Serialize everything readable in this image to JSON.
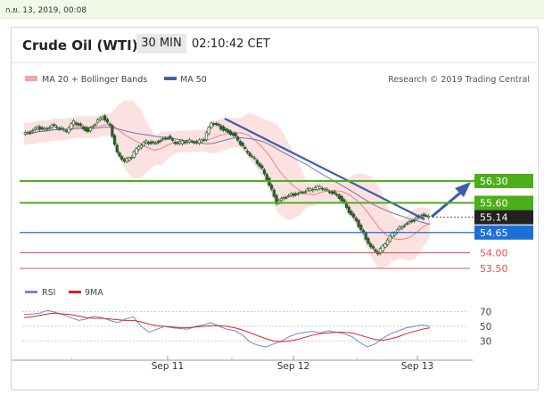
{
  "header": {
    "datetime": "ก.ย. 13, 2019, 00:08",
    "instrument": "Crude Oil (WTI)",
    "timeframe": "30 MIN",
    "time": "02:10:42 CET"
  },
  "legend": {
    "ma20": "MA 20 + Bollinger Bands",
    "ma50": "MA 50",
    "credit": "Research © 2019 Trading Central",
    "rsi": "RSI",
    "rsi_ma": "9MA"
  },
  "colors": {
    "band_fill": "#fcdcdc",
    "ma20": "#f08080",
    "ma50": "#4a5fa5",
    "trend": "#3a5ea8",
    "resistance": "#4caf1a",
    "support": "#1a6fd8",
    "support_red": "#e05050",
    "last": "#222222",
    "candle": "#2b5d2b",
    "rsi": "#6f88d6",
    "rsi_ma": "#dd2222"
  },
  "chart_data": [
    {
      "type": "candlestick",
      "x_ticks": [
        "Sep 11",
        "Sep 12",
        "Sep 13"
      ],
      "levels": [
        {
          "label": "56.30",
          "value": 56.3,
          "kind": "resistance"
        },
        {
          "label": "55.60",
          "value": 55.6,
          "kind": "resistance"
        },
        {
          "label": "55.14",
          "value": 55.14,
          "kind": "last"
        },
        {
          "label": "54.65",
          "value": 54.65,
          "kind": "support"
        },
        {
          "label": "54.00",
          "value": 54.0,
          "kind": "support-red"
        },
        {
          "label": "53.50",
          "value": 53.5,
          "kind": "support-red"
        }
      ],
      "price_series": [
        57.8,
        57.85,
        58.0,
        57.95,
        58.1,
        58.0,
        57.9,
        58.2,
        58.05,
        57.9,
        58.15,
        58.35,
        58.05,
        57.2,
        56.95,
        57.1,
        57.4,
        57.55,
        57.5,
        57.6,
        57.7,
        57.5,
        57.55,
        57.6,
        57.55,
        57.65,
        58.15,
        58.05,
        57.9,
        57.8,
        57.5,
        57.2,
        57.0,
        56.7,
        56.2,
        55.6,
        55.75,
        55.85,
        55.9,
        56.0,
        56.05,
        56.1,
        56.0,
        55.9,
        55.7,
        55.3,
        55.0,
        54.6,
        54.2,
        54.0,
        54.3,
        54.6,
        54.8,
        54.95,
        55.05,
        55.2,
        55.14
      ]
    },
    {
      "type": "line",
      "name": "RSI",
      "y_ticks": [
        70,
        50,
        30
      ],
      "ylim": [
        20,
        80
      ],
      "series": [
        {
          "name": "RSI",
          "values": [
            66,
            67,
            68,
            72,
            69,
            66,
            62,
            58,
            60,
            64,
            62,
            58,
            55,
            60,
            63,
            50,
            42,
            46,
            50,
            48,
            47,
            46,
            50,
            52,
            55,
            50,
            46,
            44,
            38,
            28,
            24,
            22,
            26,
            30,
            36,
            40,
            42,
            43,
            41,
            44,
            42,
            40,
            36,
            28,
            22,
            26,
            34,
            40,
            44,
            48,
            50,
            52,
            50
          ]
        },
        {
          "name": "9MA",
          "values": [
            62,
            63,
            65,
            67,
            68,
            67,
            66,
            64,
            62,
            61,
            61,
            60,
            59,
            58,
            58,
            56,
            53,
            51,
            50,
            49,
            48,
            48,
            49,
            50,
            51,
            51,
            50,
            48,
            45,
            41,
            37,
            33,
            30,
            29,
            30,
            32,
            35,
            38,
            40,
            41,
            42,
            42,
            41,
            38,
            35,
            32,
            31,
            33,
            36,
            40,
            43,
            46,
            48
          ]
        }
      ]
    }
  ]
}
